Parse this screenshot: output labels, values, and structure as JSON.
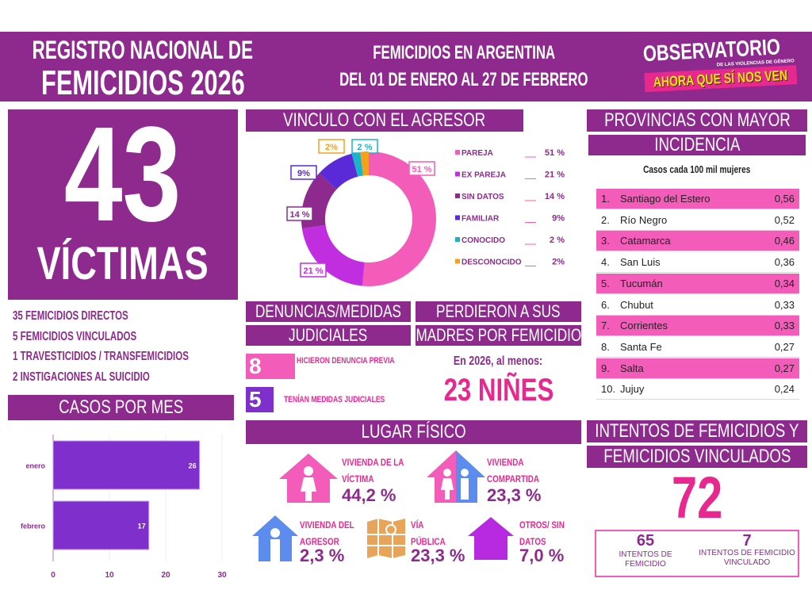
{
  "header": {
    "title_line1": "REGISTRO NACIONAL DE",
    "title_line2": "FEMICIDIOS 2026",
    "subtitle_line1": "FEMICIDIOS EN ARGENTINA",
    "subtitle_line2": "DEL 01 DE ENERO AL 27 DE FEBRERO",
    "logo": {
      "line1": "OBSERVATORIO",
      "line2": "DE LAS VIOLENCIAS DE GÉNERO",
      "line3": "AHORA QUE SÍ NOS VEN"
    }
  },
  "colors": {
    "purple": "#8e2a8e",
    "pink": "#f45cba",
    "magenta": "#e8288f",
    "violet": "#7e2fcc",
    "blue": "#5b8cee",
    "orange": "#e8a55a"
  },
  "victims": {
    "count": "43",
    "label": "VÍCTIMAS",
    "breakdown": [
      "35 FEMICIDIOS DIRECTOS",
      "5 FEMICIDIOS VINCULADOS",
      "1 TRAVESTICIDIOS / TRANSFEMICIDIOS",
      "2 INSTIGACIONES AL SUICIDIO"
    ]
  },
  "casos_por_mes": {
    "title": "CASOS POR MES"
  },
  "vinculo": {
    "title": "VINCULO CON EL AGRESOR"
  },
  "denuncias": {
    "title_line1": "DENUNCIAS/MEDIDAS",
    "title_line2": "JUDICIALES",
    "items": [
      {
        "value": "8",
        "label": "HICIERON DENUNCIA PREVIA"
      },
      {
        "value": "5",
        "label": "TENÍAN MEDIDAS JUDICIALES"
      }
    ]
  },
  "madres": {
    "title_line1": "PERDIERON A SUS",
    "title_line2": "MADRES POR FEMICIDIO",
    "intro": "En 2026, al menos:",
    "value": "23 NIÑES"
  },
  "lugar": {
    "title": "LUGAR FÍSICO",
    "items": [
      {
        "label_line1": "VIVIENDA DE LA",
        "label_line2": "VÍCTIMA",
        "value": "44,2 %",
        "icon": "house-woman-icon"
      },
      {
        "label_line1": "VIVIENDA",
        "label_line2": "COMPARTIDA",
        "value": "23,3 %",
        "icon": "house-couple-icon"
      },
      {
        "label_line1": "VIVIENDA DEL",
        "label_line2": "AGRESOR",
        "value": "2,3 %",
        "icon": "house-man-icon"
      },
      {
        "label_line1": "VÍA",
        "label_line2": "PÚBLICA",
        "value": "23,3 %",
        "icon": "map-icon"
      },
      {
        "label_line1": "OTROS/ SIN",
        "label_line2": "DATOS",
        "value": "7,0 %",
        "icon": "house-icon"
      }
    ]
  },
  "provincias": {
    "title_line1": "PROVINCIAS CON MAYOR",
    "title_line2": "INCIDENCIA",
    "subtitle": "Casos cada 100 mil mujeres",
    "rows": [
      {
        "rank": "1.",
        "name": "Santiago del Estero",
        "value": "0,56"
      },
      {
        "rank": "2.",
        "name": "Río Negro",
        "value": "0,52"
      },
      {
        "rank": "3.",
        "name": "Catamarca",
        "value": "0,46"
      },
      {
        "rank": "4.",
        "name": "San Luis",
        "value": "0,36"
      },
      {
        "rank": "5.",
        "name": "Tucumán",
        "value": "0,34"
      },
      {
        "rank": "6.",
        "name": "Chubut",
        "value": "0,33"
      },
      {
        "rank": "7.",
        "name": "Corrientes",
        "value": "0,33"
      },
      {
        "rank": "8.",
        "name": "Santa Fe",
        "value": "0,27"
      },
      {
        "rank": "9.",
        "name": "Salta",
        "value": "0,27"
      },
      {
        "rank": "10.",
        "name": "Jujuy",
        "value": "0,24"
      }
    ]
  },
  "intentos": {
    "title_line1": "INTENTOS DE FEMICIDIOS Y",
    "title_line2": "FEMICIDIOS VINCULADOS",
    "total": "72",
    "items": [
      {
        "value": "65",
        "label": "INTENTOS DE FEMICIDIO"
      },
      {
        "value": "7",
        "label": "INTENTOS DE FEMICIDIO VINCULADO"
      }
    ]
  },
  "chart_data": [
    {
      "type": "bar",
      "orientation": "horizontal",
      "categories": [
        "enero",
        "febrero"
      ],
      "values": [
        26,
        17
      ],
      "xlim": [
        0,
        30
      ],
      "xticks": [
        "0",
        "10",
        "20",
        "30"
      ],
      "grid": true
    },
    {
      "type": "pie",
      "donut": true,
      "categories": [
        "PAREJA",
        "EX PAREJA",
        "SIN DATOS",
        "FAMILIAR",
        "CONOCIDO",
        "DESCONOCIDO"
      ],
      "values": [
        51,
        21,
        14,
        9,
        2,
        2
      ],
      "labels": [
        "51 %",
        "21 %",
        "14 %",
        "9%",
        "2 %",
        "2%"
      ],
      "colors": [
        "#f45cba",
        "#c02ee0",
        "#8e2a8e",
        "#5a2ad8",
        "#1bb3c8",
        "#f5a21b"
      ],
      "legend": "right"
    }
  ]
}
